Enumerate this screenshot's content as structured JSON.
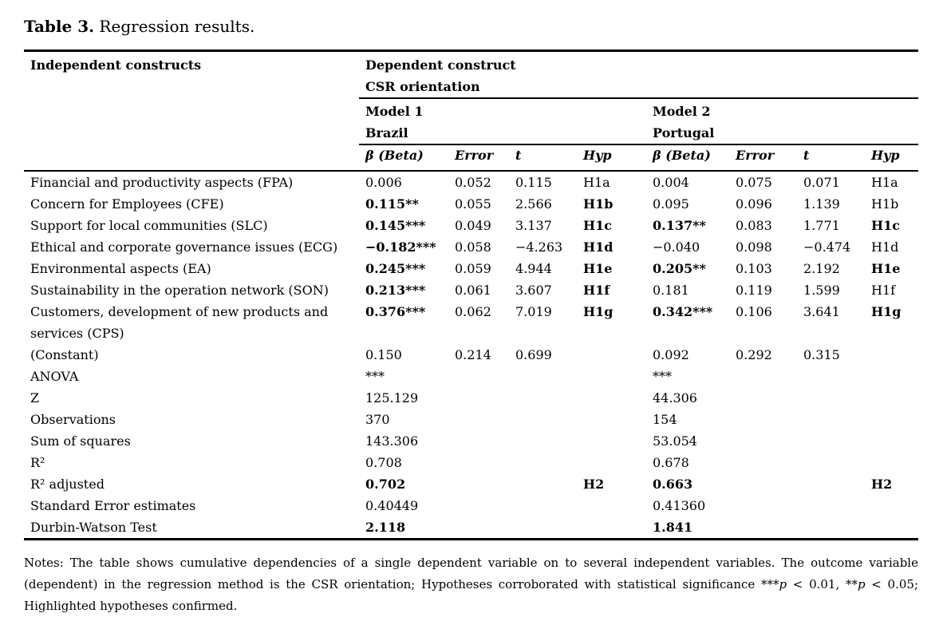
{
  "colors": {
    "text": "#000000",
    "background": "#ffffff"
  },
  "title": {
    "bold": "Table 3.",
    "rest": " Regression results."
  },
  "table": {
    "header": {
      "independent": "Independent constructs",
      "dependent": [
        "Dependent construct",
        "CSR orientation"
      ],
      "model1": [
        "Model 1",
        "Brazil"
      ],
      "model2": [
        "Model 2",
        "Portugal"
      ],
      "cols": [
        "β (Beta)",
        "Error",
        "t",
        "Hyp"
      ]
    },
    "rows": [
      {
        "label": [
          "Financial and productivity aspects (FPA)"
        ],
        "cells": [
          "0.006",
          "0.052",
          "0.115",
          "H1a",
          "0.004",
          "0.075",
          "0.071",
          "H1a"
        ],
        "bold": []
      },
      {
        "label": [
          "Concern for Employees (CFE)"
        ],
        "cells": [
          "0.115**",
          "0.055",
          "2.566",
          "H1b",
          "0.095",
          "0.096",
          "1.139",
          "H1b"
        ],
        "bold": [
          0,
          3
        ]
      },
      {
        "label": [
          "Support for local communities (SLC)"
        ],
        "cells": [
          "0.145***",
          "0.049",
          "3.137",
          "H1c",
          "0.137**",
          "0.083",
          "1.771",
          "H1c"
        ],
        "bold": [
          0,
          3,
          4,
          7
        ]
      },
      {
        "label": [
          "Ethical and corporate governance issues (ECG)"
        ],
        "cells": [
          "−0.182***",
          "0.058",
          "−4.263",
          "H1d",
          "−0.040",
          "0.098",
          "−0.474",
          "H1d"
        ],
        "bold": [
          0,
          3
        ]
      },
      {
        "label": [
          "Environmental aspects (EA)"
        ],
        "cells": [
          "0.245***",
          "0.059",
          "4.944",
          "H1e",
          "0.205**",
          "0.103",
          "2.192",
          "H1e"
        ],
        "bold": [
          0,
          3,
          4,
          7
        ]
      },
      {
        "label": [
          "Sustainability in the operation network (SON)"
        ],
        "cells": [
          "0.213***",
          "0.061",
          "3.607",
          "H1f",
          "0.181",
          "0.119",
          "1.599",
          "H1f"
        ],
        "bold": [
          0,
          3
        ]
      },
      {
        "label": [
          "Customers, development of new products and",
          "services (CPS)"
        ],
        "cells": [
          "0.376***",
          "0.062",
          "7.019",
          "H1g",
          "0.342***",
          "0.106",
          "3.641",
          "H1g"
        ],
        "bold": [
          0,
          3,
          4,
          7
        ]
      },
      {
        "label": [
          "(Constant)"
        ],
        "cells": [
          "0.150",
          "0.214",
          "0.699",
          "",
          "0.092",
          "0.292",
          "0.315",
          ""
        ],
        "bold": []
      },
      {
        "label": [
          "ANOVA"
        ],
        "cells": [
          "***",
          "",
          "",
          "",
          "***",
          "",
          "",
          ""
        ],
        "bold": []
      },
      {
        "label": [
          "Z"
        ],
        "cells": [
          "125.129",
          "",
          "",
          "",
          "44.306",
          "",
          "",
          ""
        ],
        "bold": []
      },
      {
        "label": [
          "Observations"
        ],
        "cells": [
          "370",
          "",
          "",
          "",
          "154",
          "",
          "",
          ""
        ],
        "bold": []
      },
      {
        "label": [
          "Sum of squares"
        ],
        "cells": [
          "143.306",
          "",
          "",
          "",
          "53.054",
          "",
          "",
          ""
        ],
        "bold": []
      },
      {
        "label": [
          "R²"
        ],
        "cells": [
          "0.708",
          "",
          "",
          "",
          "0.678",
          "",
          "",
          ""
        ],
        "bold": []
      },
      {
        "label": [
          "R² adjusted"
        ],
        "cells": [
          "0.702",
          "",
          "",
          "H2",
          "0.663",
          "",
          "",
          "H2"
        ],
        "bold": [
          0,
          3,
          4,
          7
        ]
      },
      {
        "label": [
          "Standard Error estimates"
        ],
        "cells": [
          "0.40449",
          "",
          "",
          "",
          "0.41360",
          "",
          "",
          ""
        ],
        "bold": []
      },
      {
        "label": [
          "Durbin-Watson Test"
        ],
        "cells": [
          "2.118",
          "",
          "",
          "",
          "1.841",
          "",
          "",
          ""
        ],
        "bold": [
          0,
          4
        ]
      }
    ]
  },
  "notes": {
    "seg1": "Notes: The table shows cumulative dependencies of a single dependent variable on to several independent variables. The outcome variable (dependent) in the regression method is the CSR orientation; Hypotheses corroborated with statistical significance ***",
    "p1": "p",
    "seg2": " < 0.01, **",
    "p2": "p",
    "seg3": " < 0.05; Highlighted hypotheses confirmed."
  }
}
